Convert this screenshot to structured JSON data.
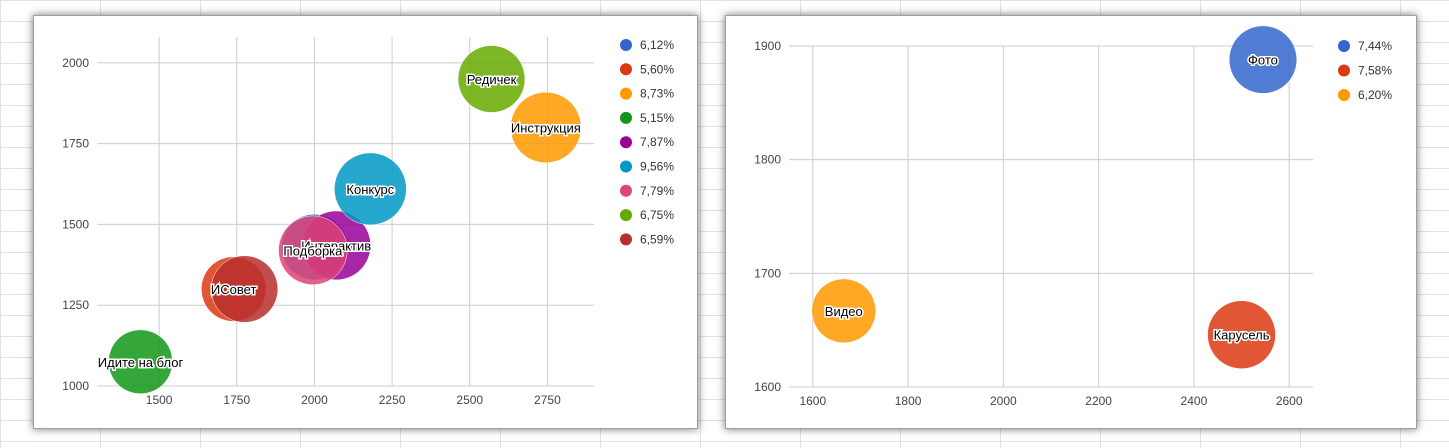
{
  "chart_data": [
    {
      "type": "bubble",
      "xlim": [
        1300,
        2900
      ],
      "ylim": [
        1000,
        2080
      ],
      "x_ticks": [
        1500,
        1750,
        2000,
        2250,
        2500,
        2750
      ],
      "y_ticks": [
        1000,
        1250,
        1500,
        1750,
        2000
      ],
      "grid": true,
      "legend_position": "right",
      "series": [
        {
          "name": "6,12%",
          "color": "#3366cc",
          "x": 2000,
          "y": 1430,
          "size": 6.12,
          "label": ""
        },
        {
          "name": "5,60%",
          "color": "#dc3912",
          "x": 1740,
          "y": 1300,
          "size": 5.6,
          "label": "ИСовет"
        },
        {
          "name": "8,73%",
          "color": "#ff9900",
          "x": 2745,
          "y": 1800,
          "size": 8.73,
          "label": "Инструкция"
        },
        {
          "name": "5,15%",
          "color": "#109618",
          "x": 1440,
          "y": 1075,
          "size": 5.15,
          "label": "Идите на блог"
        },
        {
          "name": "7,87%",
          "color": "#990099",
          "x": 2070,
          "y": 1435,
          "size": 7.87,
          "label": "Интерактив"
        },
        {
          "name": "9,56%",
          "color": "#0099c6",
          "x": 2180,
          "y": 1610,
          "size": 9.56,
          "label": "Конкурс"
        },
        {
          "name": "7,79%",
          "color": "#dd4477",
          "x": 1995,
          "y": 1420,
          "size": 7.79,
          "label": "Подборка"
        },
        {
          "name": "6,75%",
          "color": "#66aa00",
          "x": 2570,
          "y": 1950,
          "size": 6.75,
          "label": "Редичек"
        },
        {
          "name": "6,59%",
          "color": "#b82e2e",
          "x": 1775,
          "y": 1300,
          "size": 6.59,
          "label": ""
        }
      ]
    },
    {
      "type": "bubble",
      "xlim": [
        1550,
        2650
      ],
      "ylim": [
        1600,
        1900
      ],
      "x_ticks": [
        1600,
        1800,
        2000,
        2200,
        2400,
        2600
      ],
      "y_ticks": [
        1600,
        1700,
        1800,
        1900
      ],
      "grid": true,
      "legend_position": "right",
      "series": [
        {
          "name": "7,44%",
          "color": "#3366cc",
          "x": 2545,
          "y": 1888,
          "size": 7.44,
          "label": "Фото"
        },
        {
          "name": "7,58%",
          "color": "#dc3912",
          "x": 2500,
          "y": 1646,
          "size": 7.58,
          "label": "Карусель"
        },
        {
          "name": "6,20%",
          "color": "#ff9900",
          "x": 1665,
          "y": 1667,
          "size": 6.2,
          "label": "Видео"
        }
      ]
    }
  ]
}
